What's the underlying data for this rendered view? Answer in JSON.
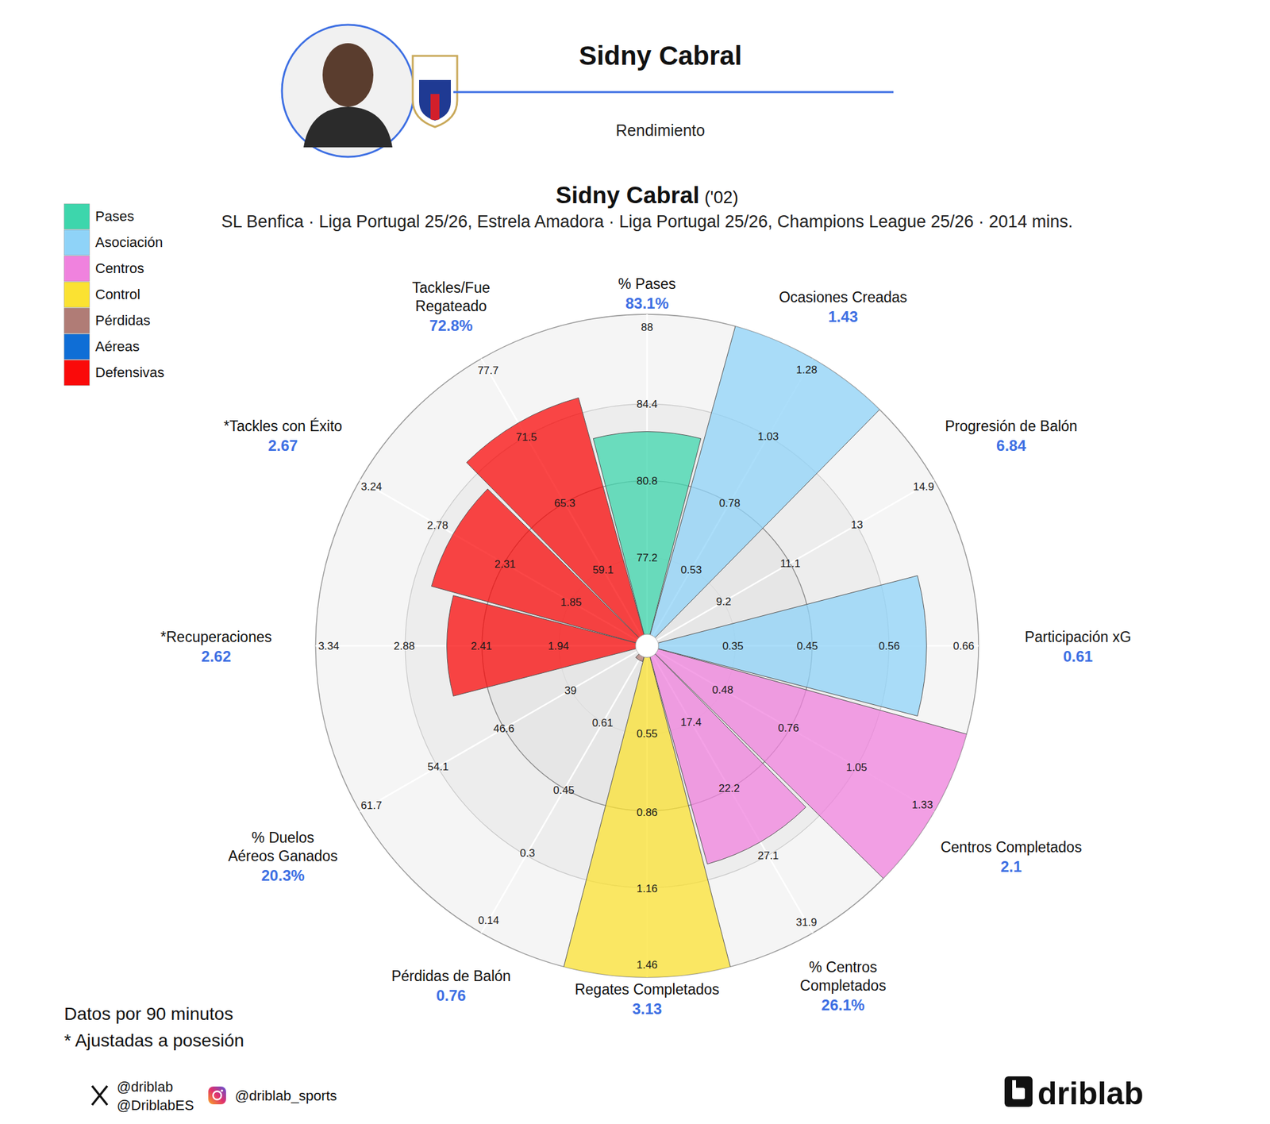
{
  "header": {
    "name": "Sidny Cabral",
    "subtitle": "Rendimiento"
  },
  "chart_data": {
    "type": "polar_bar",
    "title": "Sidny Cabral",
    "title_suffix": "('02)",
    "subtitle": "SL Benfica · Liga Portugal 25/26, Estrela Amadora · Liga Portugal 25/26, Champions League 25/26 · 2014 mins.",
    "legend": "top-left",
    "data_labels": true,
    "groups": [
      {
        "name": "Pases",
        "color": "#3dd6ac"
      },
      {
        "name": "Asociación",
        "color": "#8fd3f8"
      },
      {
        "name": "Centros",
        "color": "#f082de"
      },
      {
        "name": "Control",
        "color": "#fbe232"
      },
      {
        "name": "Pérdidas",
        "color": "#b07c76"
      },
      {
        "name": "Aéreas",
        "color": "#0f6ed6"
      },
      {
        "name": "Defensivas",
        "color": "#fa0a0a"
      }
    ],
    "categories": [
      "% Pases",
      "Ocasiones Creadas",
      "Progresión de Balón",
      "Participación xG",
      "Centros Completados",
      "% Centros Completados",
      "Regates Completados",
      "Pérdidas de Balón",
      "% Duelos Aéreos Ganados",
      "*Recuperaciones",
      "*Tackles con Éxito",
      "Tackles/Fue Regateado"
    ],
    "category_groups": [
      "Pases",
      "Asociación",
      "Asociación",
      "Asociación",
      "Centros",
      "Centros",
      "Control",
      "Pérdidas",
      "Aéreas",
      "Defensivas",
      "Defensivas",
      "Defensivas"
    ],
    "values": [
      83.1,
      1.43,
      6.84,
      0.61,
      2.1,
      26.1,
      3.13,
      0.76,
      20.3,
      2.62,
      2.67,
      72.8
    ],
    "value_labels": [
      "83.1%",
      "1.43",
      "6.84",
      "0.61",
      "2.1",
      "26.1%",
      "3.13",
      "0.76",
      "20.3%",
      "2.62",
      "2.67",
      "72.8%"
    ],
    "rlims": [
      [
        73.6,
        88.6
      ],
      [
        0.28,
        1.32
      ],
      [
        7.3,
        15.2
      ],
      [
        0.25,
        0.68
      ],
      [
        0.2,
        1.38
      ],
      [
        12.6,
        32.7
      ],
      [
        0.25,
        1.51
      ],
      [
        0.77,
        0.11
      ],
      [
        31.4,
        63.0
      ],
      [
        1.47,
        3.42
      ],
      [
        1.39,
        3.32
      ],
      [
        52.9,
        78.8
      ]
    ],
    "rticks": [
      [
        77.2,
        80.8,
        84.4,
        88
      ],
      [
        0.53,
        0.78,
        1.03,
        1.28
      ],
      [
        9.2,
        11.1,
        13,
        14.9
      ],
      [
        0.35,
        0.45,
        0.56,
        0.66
      ],
      [
        0.48,
        0.76,
        1.05,
        1.33
      ],
      [
        17.4,
        22.2,
        27.1,
        31.9
      ],
      [
        0.55,
        0.86,
        1.16,
        1.46
      ],
      [
        0.61,
        0.45,
        0.3,
        0.14
      ],
      [
        39,
        46.6,
        54.1,
        61.7
      ],
      [
        1.94,
        2.41,
        2.88,
        3.34
      ],
      [
        1.85,
        2.31,
        2.78,
        3.24
      ],
      [
        59.1,
        65.3,
        71.5,
        77.7
      ]
    ]
  },
  "footer": {
    "notes": [
      "Datos por 90 minutos",
      "* Ajustadas a posesión"
    ],
    "x_handles": [
      "@driblab",
      "@DriblabES"
    ],
    "instagram": "@driblab_sports",
    "brand": "driblab"
  }
}
